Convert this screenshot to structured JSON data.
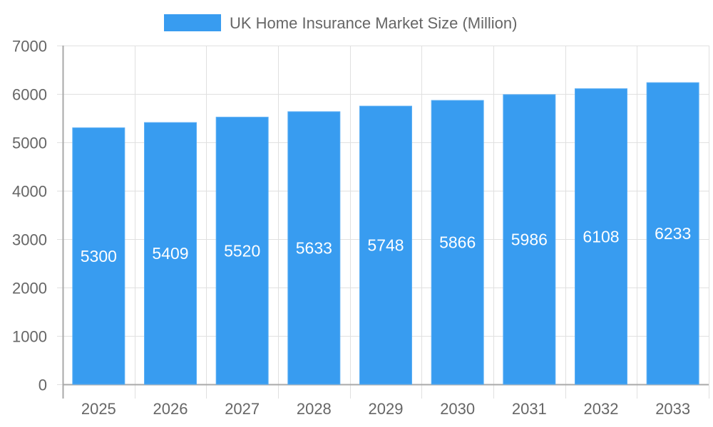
{
  "chart_data": {
    "type": "bar",
    "title": "",
    "legend": [
      {
        "label": "UK Home Insurance Market Size (Million)",
        "color": "#389cf0"
      }
    ],
    "legend_position": "top",
    "categories": [
      "2025",
      "2026",
      "2027",
      "2028",
      "2029",
      "2030",
      "2031",
      "2032",
      "2033"
    ],
    "series": [
      {
        "name": "UK Home Insurance Market Size (Million)",
        "values": [
          5300,
          5409,
          5520,
          5633,
          5748,
          5866,
          5986,
          6108,
          6233
        ],
        "color": "#389cf0"
      }
    ],
    "xlabel": "",
    "ylabel": "",
    "ylim": [
      0,
      7000
    ],
    "yticks": [
      0,
      1000,
      2000,
      3000,
      4000,
      5000,
      6000,
      7000
    ],
    "grid": true,
    "data_labels": true
  },
  "colors": {
    "bar": "#389cf0",
    "bar_border": "#5aaef4",
    "grid": "#e0e0e0",
    "axis": "#a8a8a8",
    "text": "#666666",
    "label": "#ffffff"
  }
}
